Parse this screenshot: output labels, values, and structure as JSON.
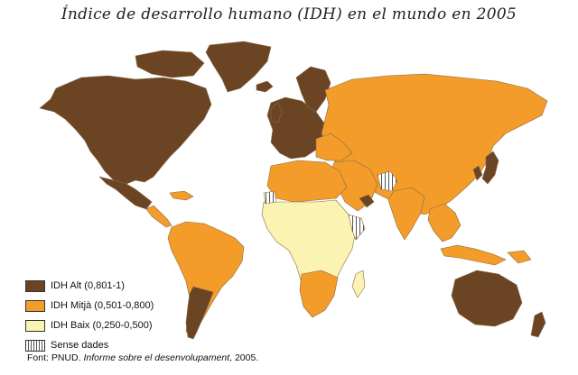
{
  "title": "Índice de desarrollo humano (IDH) en el mundo en 2005",
  "colors": {
    "high": "#6b4423",
    "medium": "#f39c2a",
    "low": "#fbf3b2",
    "border": "#8a6a45",
    "water": "#ffffff"
  },
  "legend": [
    {
      "label": "IDH Alt (0,801-1)",
      "color": "#6b4423",
      "pattern": "solid"
    },
    {
      "label": "IDH Mitjà (0,501-0,800)",
      "color": "#f39c2a",
      "pattern": "solid"
    },
    {
      "label": "IDH Baix (0,250-0,500)",
      "color": "#fbf3b2",
      "pattern": "solid"
    },
    {
      "label": "Sense dades",
      "color": "#ffffff",
      "pattern": "hatch"
    }
  ],
  "source": {
    "prefix": "Font: PNUD. ",
    "work": "Informe sobre el desenvolupament",
    "suffix": ", 2005."
  }
}
